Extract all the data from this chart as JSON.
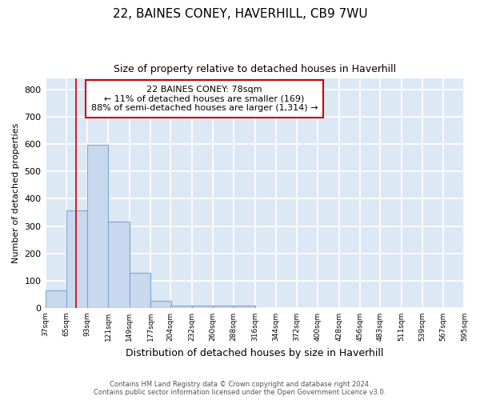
{
  "title_line1": "22, BAINES CONEY, HAVERHILL, CB9 7WU",
  "title_line2": "Size of property relative to detached houses in Haverhill",
  "xlabel": "Distribution of detached houses by size in Haverhill",
  "ylabel": "Number of detached properties",
  "footer_line1": "Contains HM Land Registry data © Crown copyright and database right 2024.",
  "footer_line2": "Contains public sector information licensed under the Open Government Licence v3.0.",
  "annotation_line1": "22 BAINES CONEY: 78sqm",
  "annotation_line2": "← 11% of detached houses are smaller (169)",
  "annotation_line3": "88% of semi-detached houses are larger (1,314) →",
  "bin_edges": [
    37,
    65,
    93,
    121,
    149,
    177,
    204,
    232,
    260,
    288,
    316,
    344,
    372,
    400,
    428,
    456,
    483,
    511,
    539,
    567,
    595
  ],
  "bar_heights": [
    65,
    357,
    597,
    317,
    130,
    27,
    10,
    8,
    8,
    9,
    0,
    0,
    0,
    0,
    0,
    0,
    0,
    0,
    0,
    0
  ],
  "bar_color": "#c8d8ee",
  "bar_edge_color": "#7ba7cc",
  "vline_color": "#cc0000",
  "vline_x": 78,
  "annotation_box_color": "#cc0000",
  "ylim": [
    0,
    840
  ],
  "yticks": [
    0,
    100,
    200,
    300,
    400,
    500,
    600,
    700,
    800
  ],
  "plot_background": "#dde8f5",
  "grid_color": "#ffffff",
  "fig_background": "#ffffff"
}
